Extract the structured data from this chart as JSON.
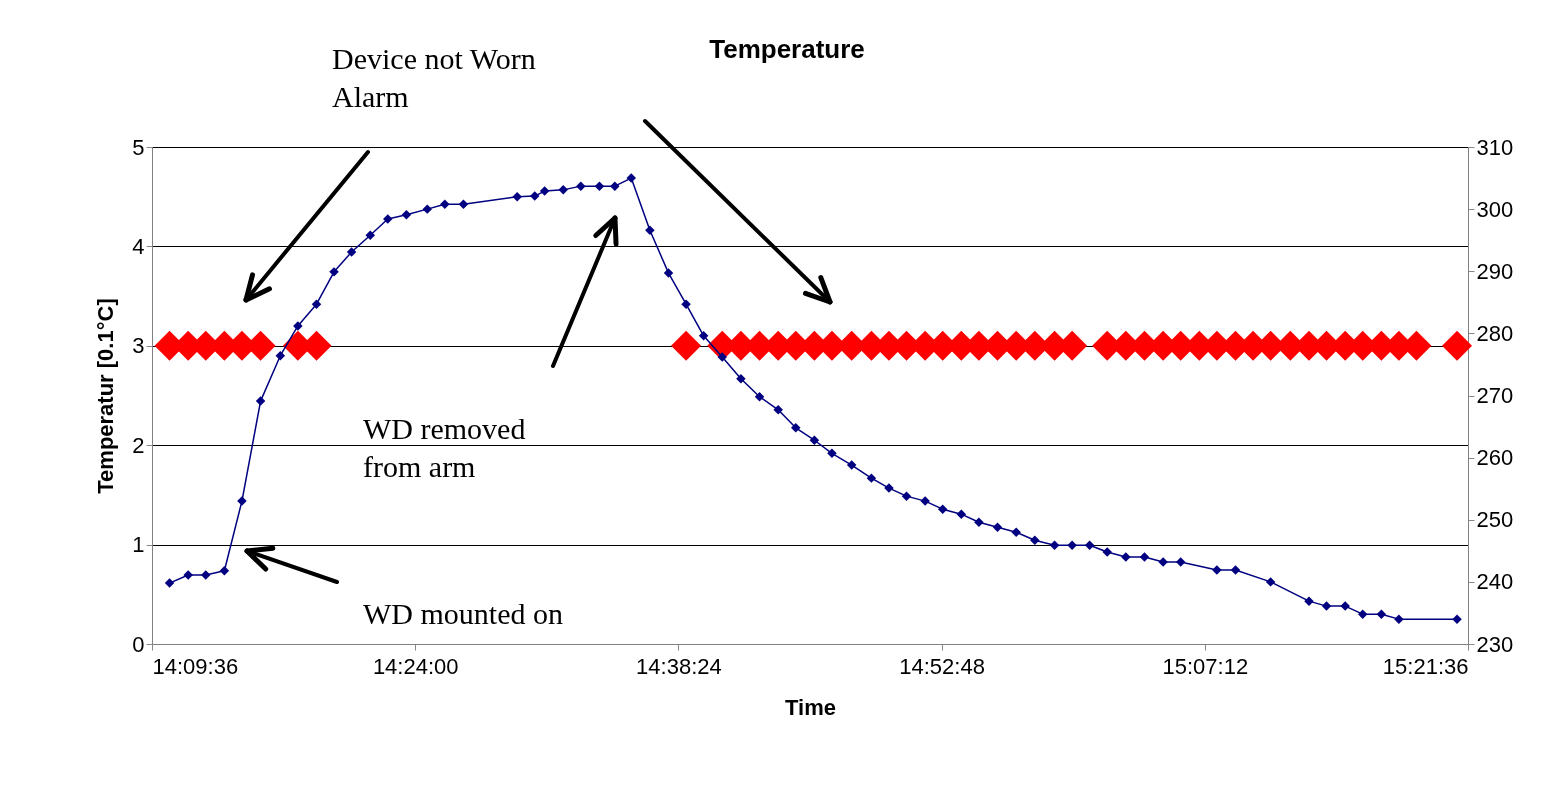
{
  "chart_data": {
    "type": "line",
    "title": "Temperature",
    "xlabel": "Time",
    "ylabel": "Temperatur [0.1°C]",
    "xlim": [
      14.16,
      15.36
    ],
    "xticks": [
      {
        "value": 14.16,
        "label": "14:09:36"
      },
      {
        "value": 14.4,
        "label": "14:24:00"
      },
      {
        "value": 14.64,
        "label": "14:38:24"
      },
      {
        "value": 14.88,
        "label": "14:52:48"
      },
      {
        "value": 15.12,
        "label": "15:07:12"
      },
      {
        "value": 15.36,
        "label": "15:21:36"
      }
    ],
    "ylim": [
      0,
      5
    ],
    "yticks": [
      0,
      1,
      2,
      3,
      4,
      5
    ],
    "y2lim": [
      230,
      310
    ],
    "y2ticks": [
      230,
      240,
      250,
      260,
      270,
      280,
      290,
      300,
      310
    ],
    "grid": "y",
    "legend": false,
    "marker": "diamond",
    "annotations": [
      "Device not Worn\nAlarm",
      "WD removed\nfrom arm",
      "WD mounted on"
    ],
    "series": [
      {
        "type": "scatter",
        "color": "#ff0000",
        "x": [
          14.176,
          14.193,
          14.209,
          14.226,
          14.242,
          14.259,
          14.293,
          14.31,
          14.647,
          14.68,
          14.697,
          14.714,
          14.731,
          14.747,
          14.764,
          14.78,
          14.798,
          14.816,
          14.832,
          14.848,
          14.865,
          14.881,
          14.898,
          14.914,
          14.931,
          14.948,
          14.965,
          14.983,
          14.999,
          15.031,
          15.048,
          15.065,
          15.082,
          15.098,
          15.115,
          15.131,
          15.148,
          15.164,
          15.18,
          15.198,
          15.215,
          15.231,
          15.248,
          15.264,
          15.281,
          15.297,
          15.313,
          15.35
        ],
        "values": [
          3,
          3,
          3,
          3,
          3,
          3,
          3,
          3,
          3,
          3,
          3,
          3,
          3,
          3,
          3,
          3,
          3,
          3,
          3,
          3,
          3,
          3,
          3,
          3,
          3,
          3,
          3,
          3,
          3,
          3,
          3,
          3,
          3,
          3,
          3,
          3,
          3,
          3,
          3,
          3,
          3,
          3,
          3,
          3,
          3,
          3,
          3,
          3
        ]
      },
      {
        "type": "line",
        "axis": "y2",
        "color": "#000080",
        "x": [
          14.176,
          14.193,
          14.209,
          14.226,
          14.242,
          14.259,
          14.277,
          14.293,
          14.31,
          14.326,
          14.342,
          14.359,
          14.375,
          14.392,
          14.411,
          14.427,
          14.444,
          14.493,
          14.509,
          14.518,
          14.535,
          14.551,
          14.568,
          14.582,
          14.597,
          14.614,
          14.631,
          14.647,
          14.663,
          14.68,
          14.697,
          14.714,
          14.731,
          14.747,
          14.764,
          14.78,
          14.798,
          14.816,
          14.832,
          14.848,
          14.865,
          14.881,
          14.898,
          14.914,
          14.931,
          14.948,
          14.965,
          14.983,
          14.999,
          15.015,
          15.031,
          15.048,
          15.065,
          15.082,
          15.098,
          15.131,
          15.148,
          15.18,
          15.215,
          15.231,
          15.248,
          15.264,
          15.281,
          15.297,
          15.35
        ],
        "values": [
          239.8,
          241.1,
          241.1,
          241.8,
          253.0,
          269.1,
          276.4,
          281.2,
          284.7,
          289.9,
          293.1,
          295.8,
          298.4,
          299.1,
          300.0,
          300.8,
          300.8,
          302.0,
          302.1,
          302.9,
          303.1,
          303.7,
          303.7,
          303.7,
          305.0,
          296.6,
          289.7,
          284.7,
          279.6,
          276.2,
          272.7,
          269.8,
          267.7,
          264.8,
          262.8,
          260.7,
          258.8,
          256.7,
          255.1,
          253.8,
          253.0,
          251.7,
          250.9,
          249.6,
          248.8,
          248.0,
          246.7,
          245.9,
          245.9,
          245.9,
          244.8,
          244.0,
          244.0,
          243.2,
          243.2,
          241.9,
          241.9,
          240.0,
          236.9,
          236.1,
          236.1,
          234.8,
          234.8,
          234.0,
          234.0
        ]
      }
    ]
  }
}
